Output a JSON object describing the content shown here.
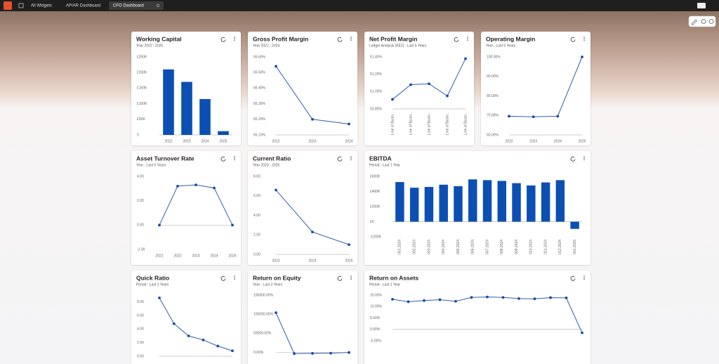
{
  "tabs": [
    "All Widgets",
    "AP/AR Dashboard",
    "CFO Dashboard"
  ],
  "chart_data": [
    {
      "type": "bar",
      "title": "Working Capital",
      "subtitle": "Year 2022 - 2025",
      "color": "#0b4fb3",
      "categories": [
        "2022",
        "2023",
        "2024",
        "2025"
      ],
      "values": [
        210000,
        170000,
        115000,
        12000
      ],
      "ylim": [
        0,
        250000
      ],
      "yticks": [
        {
          "value": 0,
          "label": "0"
        },
        {
          "value": 50000,
          "label": "£50K"
        },
        {
          "value": 100000,
          "label": "£100K"
        },
        {
          "value": 150000,
          "label": "£150K"
        },
        {
          "value": 200000,
          "label": "£200K"
        },
        {
          "value": 250000,
          "label": "£250K"
        }
      ]
    },
    {
      "type": "line",
      "title": "Gross Profit Margin",
      "subtitle": "Year 2021 - 2024",
      "color": "#2f5fa8",
      "categories": [
        "2022",
        "2023",
        "2024"
      ],
      "values": [
        65.54,
        65.2,
        65.17
      ],
      "ylim": [
        65.1,
        65.6
      ],
      "yticks": [
        {
          "value": 65.1,
          "label": "65.10%"
        },
        {
          "value": 65.2,
          "label": "65.20%"
        },
        {
          "value": 65.3,
          "label": "65.30%"
        },
        {
          "value": 65.4,
          "label": "65.40%"
        },
        {
          "value": 65.5,
          "label": "65.50%"
        },
        {
          "value": 65.6,
          "label": "65.60%"
        }
      ]
    },
    {
      "type": "line",
      "title": "Net Profit Margin",
      "subtitle": "Ledger Analysis (KE2) - Last 5 Years",
      "color": "#2f5fa8",
      "categories": [
        "Line of Busin...",
        "Line of Busin...",
        "Line of Busin...",
        "Line of Busin...",
        "Line of Busin..."
      ],
      "values": [
        50.91,
        51.08,
        51.09,
        50.95,
        51.38
      ],
      "ylim": [
        50.8,
        51.4
      ],
      "yticks": [
        {
          "value": 50.8,
          "label": "50.80%"
        },
        {
          "value": 51.0,
          "label": "51.00%"
        },
        {
          "value": 51.2,
          "label": "51.20%"
        },
        {
          "value": 51.4,
          "label": "51.40%"
        }
      ]
    },
    {
      "type": "line",
      "title": "Operating Margin",
      "subtitle": "Year - Last 5 Years",
      "color": "#2f5fa8",
      "categories": [
        "2022",
        "2023",
        "2024",
        "2025"
      ],
      "values": [
        69.6,
        69.3,
        69.6,
        100
      ],
      "ylim": [
        60,
        100
      ],
      "yticks": [
        {
          "value": 60,
          "label": "60.00%"
        },
        {
          "value": 70,
          "label": "70.00%"
        },
        {
          "value": 80,
          "label": "80.00%"
        },
        {
          "value": 90,
          "label": "90.00%"
        },
        {
          "value": 100,
          "label": "100.00%"
        }
      ]
    },
    {
      "type": "line",
      "title": "Asset Turnover Rate",
      "subtitle": "Year - Last 5 Years",
      "color": "#2f5fa8",
      "categories": [
        "2021",
        "2022",
        "2023",
        "2024",
        "2025"
      ],
      "values": [
        0,
        3.2,
        3.3,
        3.05,
        0
      ],
      "ylim": [
        -2,
        4
      ],
      "yticks": [
        {
          "value": -2,
          "label": "-2.00"
        },
        {
          "value": 0,
          "label": "0.00"
        },
        {
          "value": 2,
          "label": "2.00"
        },
        {
          "value": 4,
          "label": "4.00"
        }
      ]
    },
    {
      "type": "line",
      "title": "Current Ratio",
      "subtitle": "Year 2023 - 2025",
      "color": "#2f5fa8",
      "categories": [
        "2023",
        "2024",
        "2025"
      ],
      "values": [
        6.6,
        2.3,
        1.0
      ],
      "ylim": [
        0,
        8
      ],
      "yticks": [
        {
          "value": 0,
          "label": "0.00"
        },
        {
          "value": 2,
          "label": "2.00"
        },
        {
          "value": 4,
          "label": "4.00"
        },
        {
          "value": 6,
          "label": "6.00"
        },
        {
          "value": 8,
          "label": "8.00"
        }
      ]
    },
    {
      "type": "bar",
      "title": "EBITDA",
      "subtitle": "Period - Last 1 Year",
      "color": "#0b4fb3",
      "categories": [
        "001.2024",
        "002.2024",
        "003.2024",
        "004.2024",
        "005.2024",
        "006.2024",
        "007.2024",
        "008.2024",
        "009.2024",
        "010.2024",
        "011.2024",
        "012.2024",
        "001.2025"
      ],
      "values": [
        525000,
        450000,
        460000,
        490000,
        470000,
        560000,
        550000,
        540000,
        510000,
        480000,
        520000,
        550000,
        -95000
      ],
      "ylim": [
        -200000,
        600000
      ],
      "yticks": [
        {
          "value": -200000,
          "label": "-£200K"
        },
        {
          "value": 0,
          "label": "£0"
        },
        {
          "value": 200000,
          "label": "£200K"
        },
        {
          "value": 400000,
          "label": "£400K"
        },
        {
          "value": 600000,
          "label": "£600K"
        }
      ]
    },
    {
      "type": "line",
      "title": "Quick Ratio",
      "subtitle": "Period - Last 2 Years",
      "color": "#2f5fa8",
      "categories": [
        null,
        null,
        null,
        null,
        null,
        null
      ],
      "values": [
        8.6,
        4.8,
        3.0,
        2.4,
        1.5,
        0.8
      ],
      "ylim": [
        0,
        9
      ],
      "yticks": [
        {
          "value": 0,
          "label": "0.00"
        },
        {
          "value": 2,
          "label": "2.00"
        },
        {
          "value": 4,
          "label": "4.00"
        },
        {
          "value": 6,
          "label": "6.00"
        },
        {
          "value": 8,
          "label": "8.00"
        }
      ]
    },
    {
      "type": "line",
      "title": "Return on Equity",
      "subtitle": "Year - Last 3 Years",
      "color": "#2f5fa8",
      "categories": [
        null,
        null,
        null,
        null,
        null
      ],
      "values": [
        104000,
        -3000,
        -2500,
        -2000,
        0
      ],
      "ylim": [
        -10000,
        150000
      ],
      "yticks": [
        {
          "value": 0,
          "label": "0.00%"
        },
        {
          "value": 50000,
          "label": "50000.00%"
        },
        {
          "value": 100000,
          "label": "100000.00%"
        },
        {
          "value": 150000,
          "label": "150000.00%"
        }
      ]
    },
    {
      "type": "line",
      "title": "Return on Assets",
      "subtitle": "Period - Last 1 Year",
      "color": "#2f5fa8",
      "categories": [
        null,
        null,
        null,
        null,
        null,
        null,
        null,
        null,
        null,
        null,
        null,
        null,
        null
      ],
      "values": [
        13.2,
        12.1,
        12.6,
        13.0,
        12.3,
        14.0,
        14.2,
        14.0,
        13.5,
        13.4,
        13.9,
        13.8,
        -1.5
      ],
      "ylim": [
        -5,
        15
      ],
      "yticks": [
        {
          "value": -5,
          "label": "-5.00%"
        },
        {
          "value": 0,
          "label": "0.00%"
        },
        {
          "value": 5,
          "label": "5.00%"
        },
        {
          "value": 10,
          "label": "10.00%"
        },
        {
          "value": 15,
          "label": "15.00%"
        }
      ]
    }
  ]
}
